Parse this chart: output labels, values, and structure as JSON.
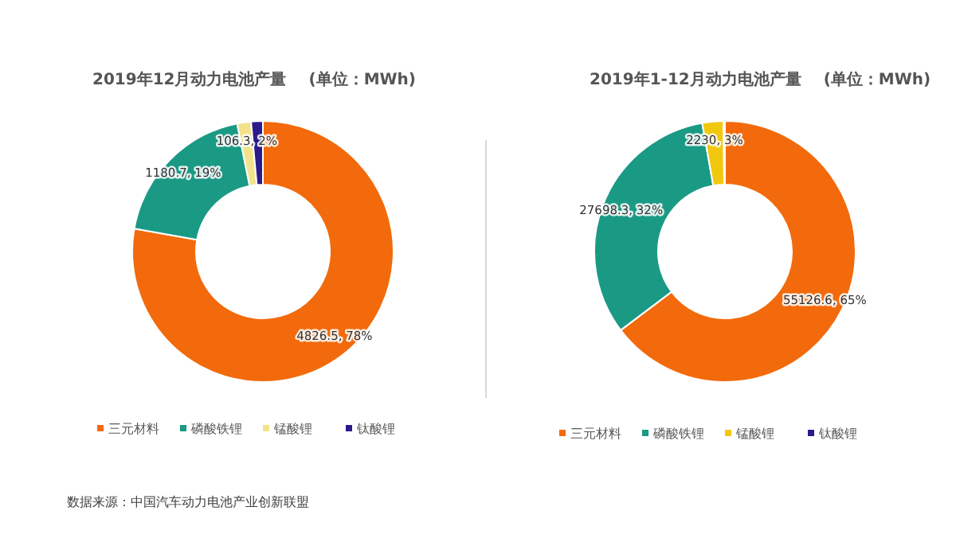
{
  "chart_data": [
    {
      "type": "donut",
      "title": "2019年12月动力电池产量",
      "subtitle": "(单位：MWh)",
      "categories": [
        "三元材料",
        "磷酸铁锂",
        "锰酸锂",
        "钛酸锂"
      ],
      "values": [
        4826.5,
        1180.7,
        106.3,
        90
      ],
      "value_labels": [
        "4826.5, 78%",
        "1180.7, 19%",
        "106.3, 2%",
        null
      ],
      "colors": [
        "#f26a0b",
        "#1a9a84",
        "#f3e28a",
        "#2b1a8a"
      ],
      "legend": "bottom",
      "annotations": [
        "数据来源：中国汽车动力电池产业创新联盟"
      ]
    },
    {
      "type": "donut",
      "title": "2019年1-12月动力电池产量",
      "subtitle": "(单位：MWh)",
      "categories": [
        "三元材料",
        "磷酸铁锂",
        "锰酸锂",
        "钛酸锂"
      ],
      "values": [
        55126.6,
        27698.3,
        2230,
        150
      ],
      "value_labels": [
        "55126.6, 65%",
        "27698.3, 32%",
        "2230, 3%",
        null
      ],
      "colors": [
        "#f26a0b",
        "#1a9a84",
        "#f2c80f",
        "#2b1a8a"
      ],
      "legend": "bottom"
    }
  ]
}
